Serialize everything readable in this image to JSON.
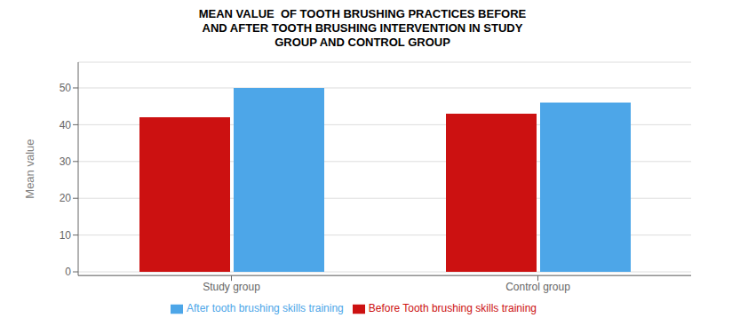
{
  "chart_data": {
    "type": "bar",
    "title": "MEAN VALUE  OF TOOTH BRUSHING PRACTICES BEFORE\nAND AFTER TOOTH BRUSHING INTERVENTION IN STUDY\nGROUP AND CONTROL GROUP",
    "categories": [
      "Study group",
      "Control group"
    ],
    "series": [
      {
        "name": "Before Tooth brushing skills training",
        "color": "#CC1111",
        "values": [
          42,
          43
        ]
      },
      {
        "name": "After tooth brushing skills training",
        "color": "#4DA6E8",
        "values": [
          50,
          46
        ]
      }
    ],
    "ylabel": "Mean value",
    "ylim": [
      -1,
      57
    ],
    "yticks": [
      0,
      10,
      20,
      30,
      40,
      50
    ],
    "grid": true,
    "legend": "bottom"
  }
}
